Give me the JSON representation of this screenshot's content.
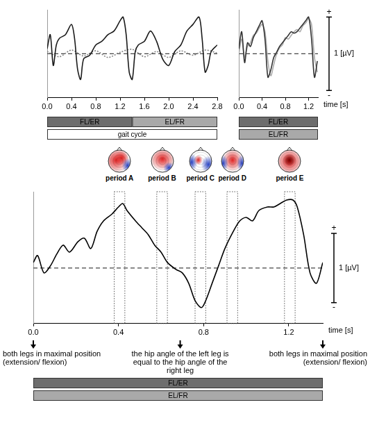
{
  "chart_data": [
    {
      "type": "line",
      "xlim": [
        0,
        2.8
      ],
      "xticks": [
        {
          "value": 0,
          "label": "0.0"
        },
        0.4,
        0.8,
        1.2,
        1.6,
        {
          "value": 2,
          "label": "2.0"
        },
        2.4,
        2.8
      ],
      "ylim": [
        -0.6,
        0.6
      ],
      "tick_labels": "x",
      "grid": false,
      "baseline": 0,
      "series": [
        {
          "color": "#1a1a1a",
          "line_style": "solid",
          "x": [
            0,
            0.05,
            0.1,
            0.15,
            0.2,
            0.3,
            0.4,
            0.45,
            0.5,
            0.55,
            0.6,
            0.7,
            0.8,
            0.9,
            1.0,
            1.1,
            1.2,
            1.25,
            1.3,
            1.35,
            1.4,
            1.45,
            1.5,
            1.6,
            1.7,
            1.8,
            1.9,
            2.0,
            2.1,
            2.2,
            2.3,
            2.4,
            2.5,
            2.55,
            2.6,
            2.65,
            2.7,
            2.8
          ],
          "values": [
            0.07,
            0.26,
            -0.16,
            0.12,
            0.21,
            0.26,
            0.4,
            0.21,
            -0.21,
            -0.35,
            -0.07,
            -0.02,
            0.12,
            0.17,
            0.26,
            0.31,
            0.45,
            0.5,
            0.26,
            -0.25,
            -0.35,
            0.03,
            0.12,
            0.17,
            0.31,
            0.17,
            -0.07,
            -0.16,
            0.03,
            0.12,
            0.31,
            0.4,
            0.5,
            0.21,
            -0.25,
            -0.16,
            0.03,
            0.12
          ]
        },
        {
          "color": "#808080",
          "line_style": "dotted",
          "x": [
            0,
            0.2,
            0.4,
            0.6,
            0.8,
            1.0,
            1.2,
            1.4,
            1.6,
            1.8,
            2.0,
            2.2,
            2.4,
            2.6,
            2.8
          ],
          "values": [
            0.03,
            -0.04,
            0.05,
            -0.03,
            0.04,
            -0.05,
            0.02,
            0.06,
            -0.04,
            0.03,
            -0.05,
            0.04,
            -0.02,
            0.05,
            0.01
          ]
        }
      ],
      "phase_bars": [
        [
          {
            "label": "FL/ER",
            "x": [
              0,
              1.4
            ],
            "color": "#6d6d6d"
          },
          {
            "label": "EL/FR",
            "x": [
              1.4,
              2.8
            ],
            "color": "#a9a9a9"
          }
        ],
        [
          {
            "label": "gait cycle",
            "x": [
              0,
              2.8
            ],
            "color": "#ffffff"
          }
        ]
      ]
    },
    {
      "type": "line",
      "xlim": [
        0,
        1.36
      ],
      "xticks": [
        {
          "value": 0,
          "label": "0.0"
        },
        0.4,
        0.8,
        1.2
      ],
      "ylim": [
        -0.6,
        0.6
      ],
      "tick_labels": "x",
      "grid": false,
      "baseline": 0,
      "xlabel": "time [s]",
      "scale_bar": {
        "value": 1,
        "label": "1 [µV]",
        "plus": "+",
        "minus": "-"
      },
      "series": [
        {
          "color": "#333333",
          "line_style": "solid",
          "x": [
            0,
            0.05,
            0.1,
            0.15,
            0.2,
            0.25,
            0.3,
            0.35,
            0.4,
            0.45,
            0.5,
            0.55,
            0.6,
            0.65,
            0.7,
            0.75,
            0.8,
            0.85,
            0.9,
            0.95,
            1.0,
            1.05,
            1.1,
            1.15,
            1.2,
            1.25,
            1.3,
            1.35
          ],
          "values": [
            0.07,
            0.3,
            -0.12,
            0.15,
            0.1,
            0.22,
            0.3,
            0.38,
            0.45,
            0.2,
            -0.32,
            -0.22,
            -0.05,
            0.02,
            0.1,
            0.15,
            0.2,
            0.25,
            0.3,
            0.28,
            0.3,
            0.35,
            0.4,
            0.45,
            0.5,
            0.2,
            -0.32,
            -0.1
          ]
        },
        {
          "color": "#aaaaaa",
          "line_style": "solid",
          "x": [
            0,
            0.05,
            0.1,
            0.15,
            0.2,
            0.25,
            0.3,
            0.35,
            0.4,
            0.45,
            0.5,
            0.55,
            0.6,
            0.65,
            0.7,
            0.75,
            0.8,
            0.85,
            0.9,
            0.95,
            1.0,
            1.05,
            1.1,
            1.15,
            1.2,
            1.25,
            1.3,
            1.35
          ],
          "values": [
            0.0,
            0.2,
            -0.05,
            0.1,
            0.15,
            0.25,
            0.28,
            0.35,
            0.4,
            0.3,
            -0.1,
            -0.3,
            -0.15,
            0.0,
            0.08,
            0.12,
            0.22,
            0.2,
            0.25,
            0.3,
            0.33,
            0.3,
            0.38,
            0.42,
            0.48,
            0.4,
            -0.05,
            -0.25
          ]
        }
      ],
      "phase_bars": [
        [
          {
            "label": "FL/ER",
            "x": [
              0,
              1.36
            ],
            "color": "#6d6d6d"
          }
        ],
        [
          {
            "label": "EL/FR",
            "x": [
              0,
              1.36
            ],
            "color": "#a9a9a9"
          }
        ]
      ]
    },
    {
      "type": "line",
      "xlim": [
        0,
        1.36
      ],
      "xticks": [
        {
          "value": 0,
          "label": "0.0"
        },
        0.4,
        0.8,
        1.2
      ],
      "ylim": [
        -0.8,
        1.1
      ],
      "tick_labels": "x",
      "grid": false,
      "baseline": 0,
      "xlabel": "time [s]",
      "scale_bar": {
        "value": 1,
        "label": "1 [µV]",
        "plus": "+",
        "minus": "-"
      },
      "series": [
        {
          "color": "#000000",
          "line_style": "solid",
          "x": [
            0,
            0.02,
            0.05,
            0.08,
            0.11,
            0.14,
            0.17,
            0.21,
            0.24,
            0.27,
            0.3,
            0.33,
            0.37,
            0.4,
            0.42,
            0.44,
            0.48,
            0.51,
            0.54,
            0.57,
            0.6,
            0.63,
            0.67,
            0.7,
            0.73,
            0.76,
            0.79,
            0.81,
            0.84,
            0.87,
            0.9,
            0.94,
            0.97,
            1.0,
            1.03,
            1.06,
            1.1,
            1.13,
            1.16,
            1.19,
            1.22,
            1.24,
            1.27,
            1.3,
            1.33,
            1.36
          ],
          "values": [
            0.08,
            0.18,
            -0.07,
            0.03,
            0.2,
            0.33,
            0.23,
            0.38,
            0.43,
            0.28,
            0.53,
            0.68,
            0.78,
            0.88,
            0.93,
            0.83,
            0.68,
            0.58,
            0.48,
            0.33,
            0.23,
            0.08,
            -0.02,
            -0.07,
            -0.22,
            -0.47,
            -0.57,
            -0.47,
            -0.22,
            0.03,
            0.28,
            0.53,
            0.68,
            0.73,
            0.68,
            0.83,
            0.88,
            0.88,
            0.93,
            0.98,
            0.98,
            0.88,
            0.48,
            -0.07,
            -0.22,
            0.08
          ]
        }
      ],
      "periods": [
        {
          "label": "period A",
          "x": [
            0.38,
            0.43
          ]
        },
        {
          "label": "period B",
          "x": [
            0.58,
            0.63
          ]
        },
        {
          "label": "period C",
          "x": [
            0.76,
            0.81
          ]
        },
        {
          "label": "period D",
          "x": [
            0.91,
            0.96
          ]
        },
        {
          "label": "period E",
          "x": [
            1.18,
            1.23
          ]
        }
      ],
      "annotations": [
        {
          "x": 0,
          "text": "both legs in maximal position (extension/ flexion)"
        },
        {
          "x": 0.69,
          "text": "the hip angle of the left leg is equal to the hip angle of the right leg"
        },
        {
          "x": 1.36,
          "text": "both legs in maximal position (extension/ flexion)"
        }
      ],
      "phase_bars": [
        [
          {
            "label": "FL/ER",
            "x": [
              0,
              1.36
            ],
            "color": "#6d6d6d"
          }
        ],
        [
          {
            "label": "EL/FR",
            "x": [
              0,
              1.36
            ],
            "color": "#a9a9a9"
          }
        ]
      ]
    }
  ]
}
